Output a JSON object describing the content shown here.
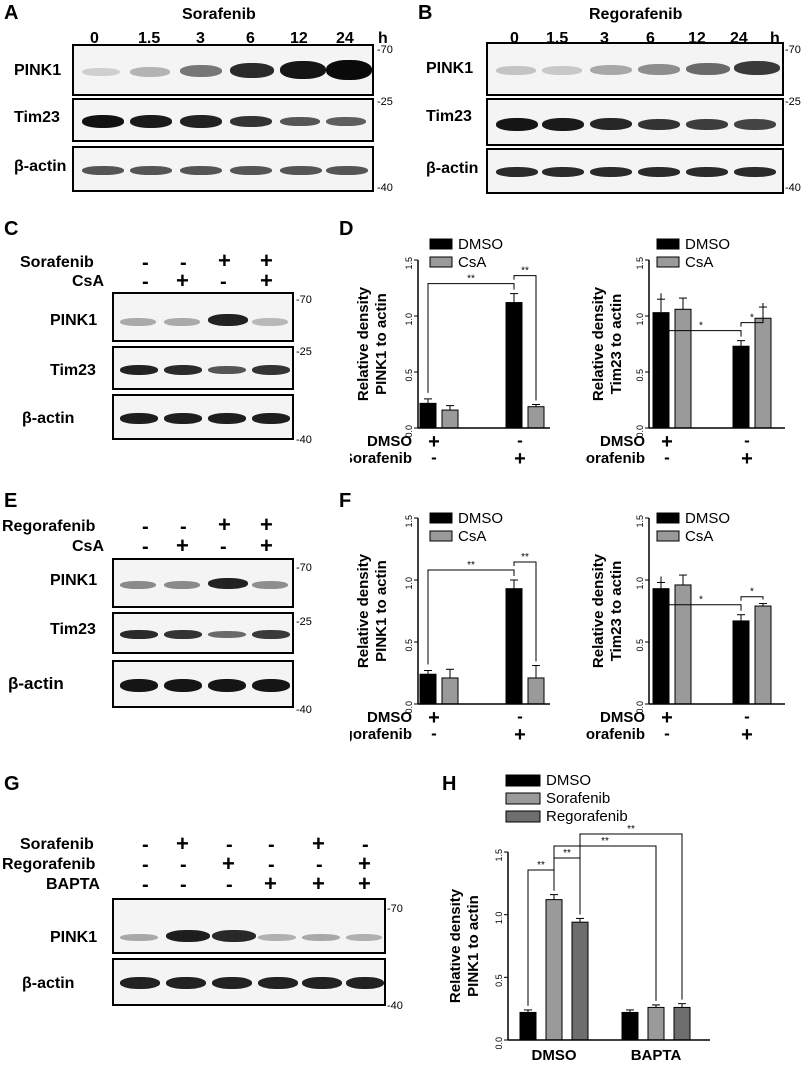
{
  "panels": {
    "A": "A",
    "B": "B",
    "C": "C",
    "D": "D",
    "E": "E",
    "F": "F",
    "G": "G",
    "H": "H"
  },
  "blotA": {
    "treatment": "Sorafenib",
    "times": [
      "0",
      "1.5",
      "3",
      "6",
      "12",
      "24"
    ],
    "unit": "h",
    "rows": [
      "PINK1",
      "Tim23",
      "β-actin"
    ],
    "markers": [
      "-70",
      "-25",
      "-40"
    ]
  },
  "blotB": {
    "treatment": "Regorafenib",
    "times": [
      "0",
      "1.5",
      "3",
      "6",
      "12",
      "24"
    ],
    "unit": "h",
    "rows": [
      "PINK1",
      "Tim23",
      "β-actin"
    ],
    "markers": [
      "-70",
      "-25",
      "-40"
    ]
  },
  "blotC": {
    "conditions": [
      {
        "label": "Sorafenib",
        "signs": [
          "-",
          "-",
          "+",
          "+"
        ]
      },
      {
        "label": "CsA",
        "signs": [
          "-",
          "+",
          "-",
          "+"
        ]
      }
    ],
    "rows": [
      "PINK1",
      "Tim23",
      "β-actin"
    ],
    "markers": [
      "-70",
      "-25",
      "-40"
    ]
  },
  "blotE": {
    "conditions": [
      {
        "label": "Regorafenib",
        "signs": [
          "-",
          "-",
          "+",
          "+"
        ]
      },
      {
        "label": "CsA",
        "signs": [
          "-",
          "+",
          "-",
          "+"
        ]
      }
    ],
    "rows": [
      "PINK1",
      "Tim23",
      "β-actin"
    ],
    "markers": [
      "-70",
      "-25",
      "-40"
    ]
  },
  "blotG": {
    "conditions": [
      {
        "label": "Sorafenib",
        "signs": [
          "-",
          "+",
          "-",
          "-",
          "+",
          "-"
        ]
      },
      {
        "label": "Regorafenib",
        "signs": [
          "-",
          "-",
          "+",
          "-",
          "-",
          "+"
        ]
      },
      {
        "label": "BAPTA",
        "signs": [
          "-",
          "-",
          "-",
          "+",
          "+",
          "+"
        ]
      }
    ],
    "rows": [
      "PINK1",
      "β-actin"
    ],
    "markers": [
      "-70",
      "-40"
    ]
  },
  "chart_data": [
    {
      "panel": "D-left",
      "type": "bar",
      "ylabel": "Relative density\nPINK1 to actin",
      "ylim": [
        0,
        1.5
      ],
      "yticks": [
        "0.0",
        "0.5",
        "1.0",
        "1.5"
      ],
      "series": [
        {
          "name": "DMSO",
          "values": [
            0.22,
            1.12
          ]
        },
        {
          "name": "CsA",
          "values": [
            0.16,
            0.19
          ]
        }
      ],
      "errors": [
        [
          0.04,
          0.08
        ],
        [
          0.04,
          0.02
        ]
      ],
      "rows": [
        {
          "label": "DMSO",
          "signs": [
            "+",
            "-"
          ]
        },
        {
          "label": "Sorafenib",
          "signs": [
            "-",
            "+"
          ]
        }
      ],
      "significance": [
        "**",
        "**"
      ]
    },
    {
      "panel": "D-right",
      "type": "bar",
      "ylabel": "Relative density\nTim23 to actin",
      "ylim": [
        0,
        1.5
      ],
      "yticks": [
        "0.0",
        "0.5",
        "1.0",
        "1.5"
      ],
      "series": [
        {
          "name": "DMSO",
          "values": [
            1.03,
            0.73
          ]
        },
        {
          "name": "CsA",
          "values": [
            1.06,
            0.98
          ]
        }
      ],
      "errors": [
        [
          0.12,
          0.05
        ],
        [
          0.1,
          0.1
        ]
      ],
      "rows": [
        {
          "label": "DMSO",
          "signs": [
            "+",
            "-"
          ]
        },
        {
          "label": "Sorafenib",
          "signs": [
            "-",
            "+"
          ]
        }
      ],
      "significance": [
        "*",
        "*"
      ]
    },
    {
      "panel": "F-left",
      "type": "bar",
      "ylabel": "Relative density\nPINK1 to actin",
      "ylim": [
        0,
        1.5
      ],
      "yticks": [
        "0.0",
        "0.5",
        "1.0",
        "1.5"
      ],
      "series": [
        {
          "name": "DMSO",
          "values": [
            0.24,
            0.93
          ]
        },
        {
          "name": "CsA",
          "values": [
            0.21,
            0.21
          ]
        }
      ],
      "errors": [
        [
          0.03,
          0.07
        ],
        [
          0.07,
          0.1
        ]
      ],
      "rows": [
        {
          "label": "DMSO",
          "signs": [
            "+",
            "-"
          ]
        },
        {
          "label": "Regorafenib",
          "signs": [
            "-",
            "+"
          ]
        }
      ],
      "significance": [
        "**",
        "**"
      ]
    },
    {
      "panel": "F-right",
      "type": "bar",
      "ylabel": "Relative density\nTim23 to actin",
      "ylim": [
        0,
        1.5
      ],
      "yticks": [
        "0.0",
        "0.5",
        "1.0",
        "1.5"
      ],
      "series": [
        {
          "name": "DMSO",
          "values": [
            0.93,
            0.67
          ]
        },
        {
          "name": "CsA",
          "values": [
            0.96,
            0.79
          ]
        }
      ],
      "errors": [
        [
          0.05,
          0.05
        ],
        [
          0.08,
          0.02
        ]
      ],
      "rows": [
        {
          "label": "DMSO",
          "signs": [
            "+",
            "-"
          ]
        },
        {
          "label": "Regorafenib",
          "signs": [
            "-",
            "+"
          ]
        }
      ],
      "significance": [
        "*",
        "*"
      ]
    },
    {
      "panel": "H",
      "type": "bar",
      "ylabel": "Relative density\nPINK1 to actin",
      "ylim": [
        0,
        1.5
      ],
      "yticks": [
        "0.0",
        "0.5",
        "1.0",
        "1.5"
      ],
      "categories": [
        "DMSO",
        "BAPTA"
      ],
      "series": [
        {
          "name": "DMSO",
          "values": [
            0.22,
            0.22
          ]
        },
        {
          "name": "Sorafenib",
          "values": [
            1.12,
            0.26
          ]
        },
        {
          "name": "Regorafenib",
          "values": [
            0.94,
            0.26
          ]
        }
      ],
      "errors": [
        [
          0.02,
          0.02
        ],
        [
          0.04,
          0.02
        ],
        [
          0.03,
          0.03
        ]
      ],
      "significance": [
        "**",
        "**",
        "**",
        "**"
      ]
    }
  ],
  "colors": {
    "dmso": "#000000",
    "grey": "#9a9a9a",
    "dark_grey": "#6e6e6e"
  }
}
